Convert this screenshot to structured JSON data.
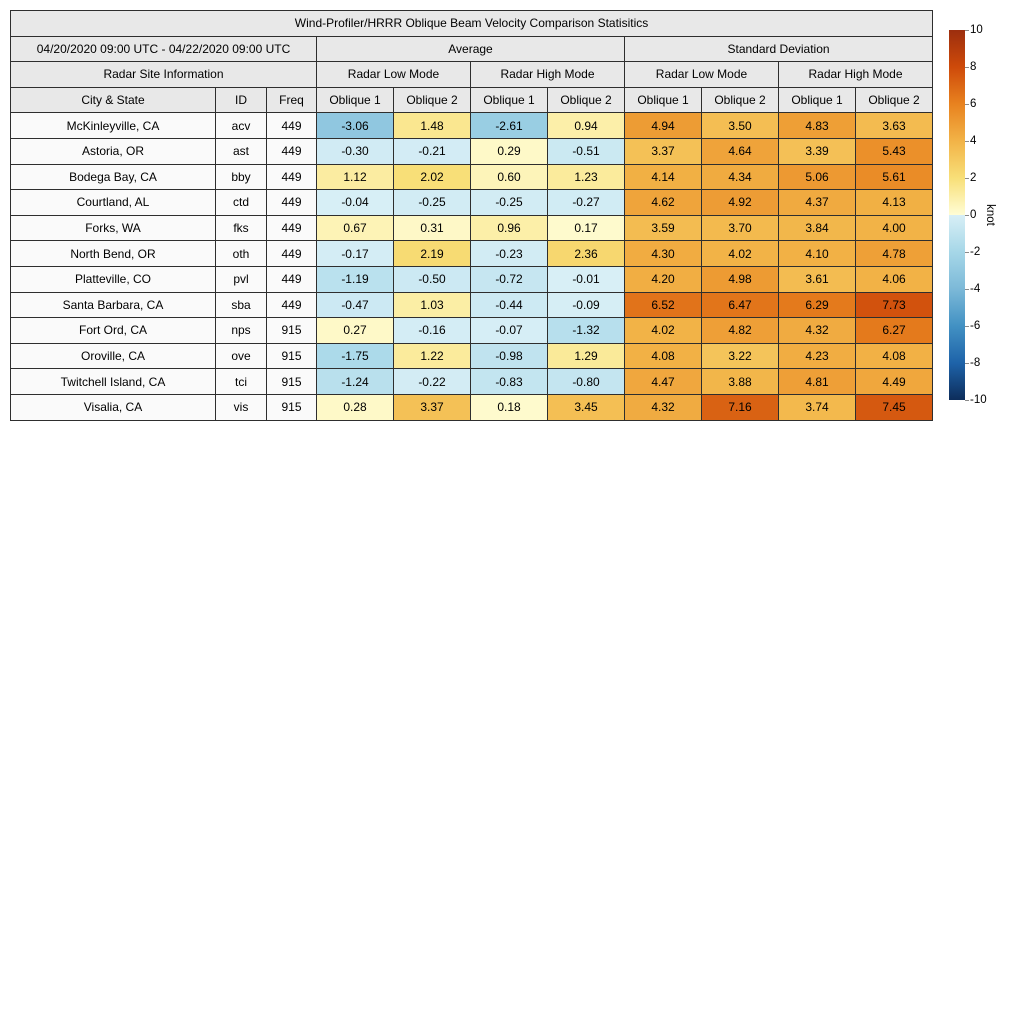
{
  "title": "Wind-Profiler/HRRR Oblique Beam Velocity Comparison Statisitics",
  "header": {
    "date_range": "04/20/2020 09:00 UTC - 04/22/2020 09:00 UTC",
    "site_info": "Radar Site Information",
    "group_average": "Average",
    "group_std": "Standard Deviation",
    "mode_low": "Radar Low Mode",
    "mode_high": "Radar High Mode",
    "col_city": "City & State",
    "col_id": "ID",
    "col_freq": "Freq",
    "col_oblique1": "Oblique 1",
    "col_oblique2": "Oblique 2"
  },
  "colorbar": {
    "unit": "knot",
    "vmin": -10,
    "vmax": 10,
    "ticks": [
      "10",
      "8",
      "6",
      "4",
      "2",
      "0",
      "-2",
      "-4",
      "-6",
      "-8",
      "-10"
    ],
    "gradient_stops": [
      {
        "v": 10,
        "c": "#9C2E0E"
      },
      {
        "v": 8,
        "c": "#CE4A0A"
      },
      {
        "v": 6,
        "c": "#E8821F"
      },
      {
        "v": 4,
        "c": "#F2B347"
      },
      {
        "v": 2,
        "c": "#F8DF78"
      },
      {
        "v": 0.0001,
        "c": "#FFFDD5"
      },
      {
        "v": -0.0001,
        "c": "#D8EFF6"
      },
      {
        "v": -2,
        "c": "#A6D7E8"
      },
      {
        "v": -4,
        "c": "#7CB9D8"
      },
      {
        "v": -6,
        "c": "#4291C3"
      },
      {
        "v": -8,
        "c": "#1E63A9"
      },
      {
        "v": -10,
        "c": "#0D2D5B"
      }
    ]
  },
  "chart_data": {
    "type": "heatmap",
    "title": "Wind-Profiler/HRRR Oblique Beam Velocity Comparison Statisitics",
    "value_columns": [
      "Average Radar Low Mode Oblique 1",
      "Average Radar Low Mode Oblique 2",
      "Average Radar High Mode Oblique 1",
      "Average Radar High Mode Oblique 2",
      "Standard Deviation Radar Low Mode Oblique 1",
      "Standard Deviation Radar Low Mode Oblique 2",
      "Standard Deviation Radar High Mode Oblique 1",
      "Standard Deviation Radar High Mode Oblique 2"
    ],
    "colorbar": {
      "label": "knot",
      "range": [
        -10,
        10
      ]
    },
    "rows": [
      {
        "city": "McKinleyville, CA",
        "id": "acv",
        "freq": "449",
        "values": [
          "-3.06",
          "1.48",
          "-2.61",
          "0.94",
          "4.94",
          "3.50",
          "4.83",
          "3.63"
        ]
      },
      {
        "city": "Astoria, OR",
        "id": "ast",
        "freq": "449",
        "values": [
          "-0.30",
          "-0.21",
          "0.29",
          "-0.51",
          "3.37",
          "4.64",
          "3.39",
          "5.43"
        ]
      },
      {
        "city": "Bodega Bay, CA",
        "id": "bby",
        "freq": "449",
        "values": [
          "1.12",
          "2.02",
          "0.60",
          "1.23",
          "4.14",
          "4.34",
          "5.06",
          "5.61"
        ]
      },
      {
        "city": "Courtland, AL",
        "id": "ctd",
        "freq": "449",
        "values": [
          "-0.04",
          "-0.25",
          "-0.25",
          "-0.27",
          "4.62",
          "4.92",
          "4.37",
          "4.13"
        ]
      },
      {
        "city": "Forks, WA",
        "id": "fks",
        "freq": "449",
        "values": [
          "0.67",
          "0.31",
          "0.96",
          "0.17",
          "3.59",
          "3.70",
          "3.84",
          "4.00"
        ]
      },
      {
        "city": "North Bend, OR",
        "id": "oth",
        "freq": "449",
        "values": [
          "-0.17",
          "2.19",
          "-0.23",
          "2.36",
          "4.30",
          "4.02",
          "4.10",
          "4.78"
        ]
      },
      {
        "city": "Platteville, CO",
        "id": "pvl",
        "freq": "449",
        "values": [
          "-1.19",
          "-0.50",
          "-0.72",
          "-0.01",
          "4.20",
          "4.98",
          "3.61",
          "4.06"
        ]
      },
      {
        "city": "Santa Barbara, CA",
        "id": "sba",
        "freq": "449",
        "values": [
          "-0.47",
          "1.03",
          "-0.44",
          "-0.09",
          "6.52",
          "6.47",
          "6.29",
          "7.73"
        ]
      },
      {
        "city": "Fort Ord, CA",
        "id": "nps",
        "freq": "915",
        "values": [
          "0.27",
          "-0.16",
          "-0.07",
          "-1.32",
          "4.02",
          "4.82",
          "4.32",
          "6.27"
        ]
      },
      {
        "city": "Oroville, CA",
        "id": "ove",
        "freq": "915",
        "values": [
          "-1.75",
          "1.22",
          "-0.98",
          "1.29",
          "4.08",
          "3.22",
          "4.23",
          "4.08"
        ]
      },
      {
        "city": "Twitchell Island, CA",
        "id": "tci",
        "freq": "915",
        "values": [
          "-1.24",
          "-0.22",
          "-0.83",
          "-0.80",
          "4.47",
          "3.88",
          "4.81",
          "4.49"
        ]
      },
      {
        "city": "Visalia, CA",
        "id": "vis",
        "freq": "915",
        "values": [
          "0.28",
          "3.37",
          "0.18",
          "3.45",
          "4.32",
          "7.16",
          "3.74",
          "7.45"
        ]
      }
    ]
  }
}
